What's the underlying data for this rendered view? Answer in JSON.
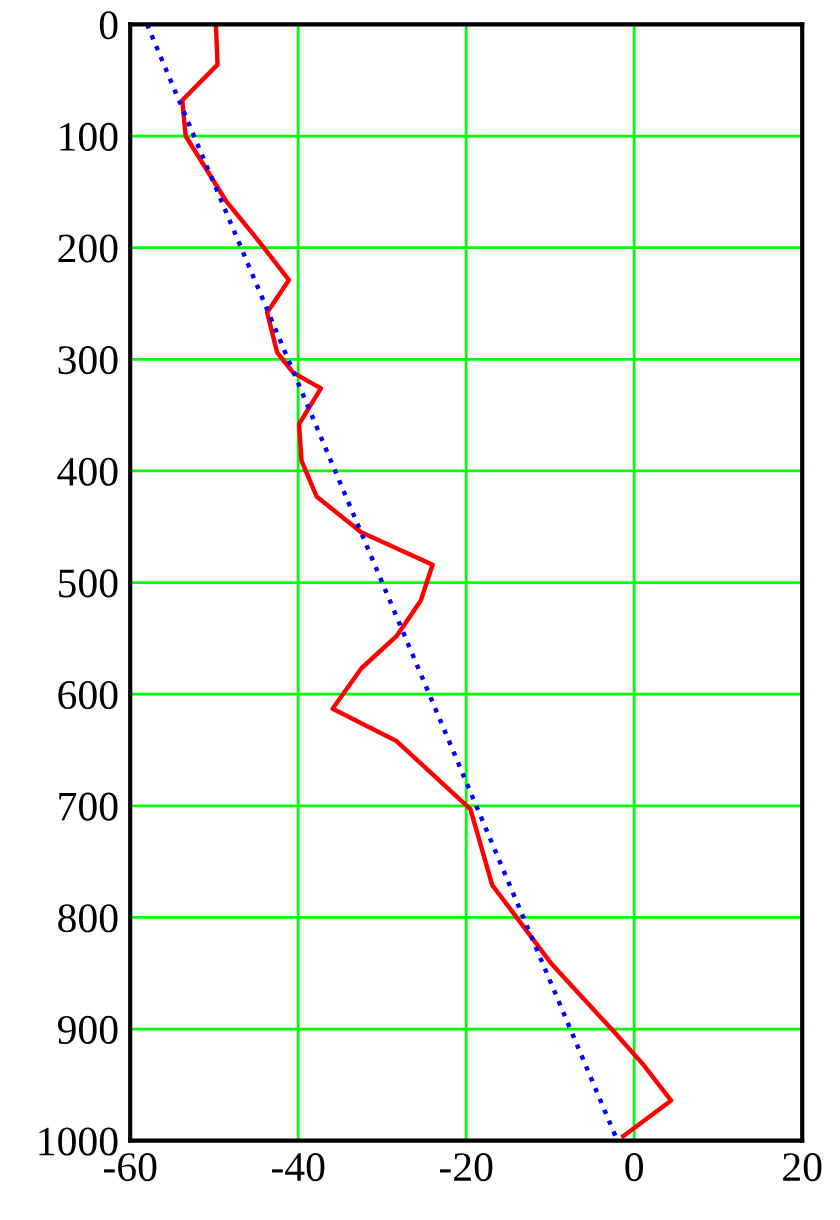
{
  "chart_data": {
    "type": "line",
    "xlim": [
      -60,
      20
    ],
    "ylim": [
      1000,
      0
    ],
    "xticks": [
      -60,
      -40,
      -20,
      0,
      20
    ],
    "yticks": [
      0,
      100,
      200,
      300,
      400,
      500,
      600,
      700,
      800,
      900,
      1000
    ],
    "grid": true,
    "legend": false,
    "marker": "none",
    "series": [
      {
        "color": "#ff0000",
        "line_style": "solid",
        "x": [
          -49.8,
          -49.6,
          -53.8,
          -53.4,
          -48.6,
          -44.4,
          -41.1,
          -43.7,
          -42.5,
          -40.6,
          -37.3,
          -39.9,
          -39.6,
          -37.8,
          -32.5,
          -24,
          -25.4,
          -28.3,
          -32.5,
          -35.9,
          -28.3,
          -19.5,
          -16.9,
          -9.8,
          -2.7,
          1.1,
          4.4,
          -1.3
        ],
        "values": [
          0,
          36,
          68,
          100,
          158,
          197,
          229,
          258,
          294,
          312,
          326,
          358,
          391,
          423,
          455,
          484,
          516,
          548,
          577,
          613,
          642,
          703,
          771,
          842,
          900,
          932,
          964,
          996
        ]
      },
      {
        "color": "#0000ff",
        "line_style": "dotted",
        "x": [
          -58,
          -44,
          -30,
          -16,
          -2
        ],
        "values": [
          0,
          250,
          500,
          750,
          1000
        ]
      }
    ]
  }
}
